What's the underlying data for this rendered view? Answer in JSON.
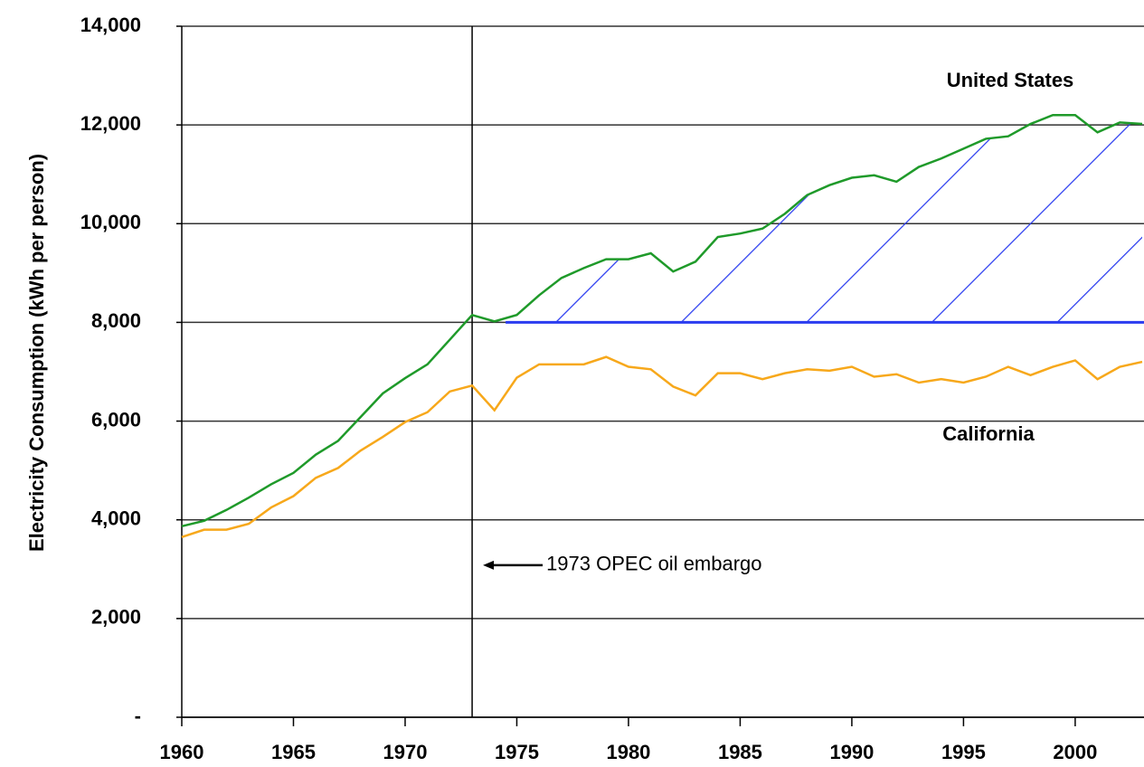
{
  "chart_data": {
    "type": "line",
    "y_label": "Electricity Consumption (kWh per person)",
    "x": [
      1960,
      1961,
      1962,
      1963,
      1964,
      1965,
      1966,
      1967,
      1968,
      1969,
      1970,
      1971,
      1972,
      1973,
      1974,
      1975,
      1976,
      1977,
      1978,
      1979,
      1980,
      1981,
      1982,
      1983,
      1984,
      1985,
      1986,
      1987,
      1988,
      1989,
      1990,
      1991,
      1992,
      1993,
      1994,
      1995,
      1996,
      1997,
      1998,
      1999,
      2000,
      2001,
      2002,
      2003
    ],
    "series": [
      {
        "name": "United States",
        "color": "#1f9a2a",
        "values": [
          3870,
          3980,
          4200,
          4450,
          4720,
          4950,
          5320,
          5600,
          6080,
          6560,
          6870,
          7150,
          7650,
          8150,
          8020,
          8150,
          8550,
          8900,
          9100,
          9280,
          9280,
          9400,
          9030,
          9230,
          9730,
          9800,
          9900,
          10200,
          10580,
          10780,
          10930,
          10980,
          10850,
          11150,
          11320,
          11520,
          11720,
          11770,
          12020,
          12200,
          12200,
          11850,
          12050,
          12020
        ]
      },
      {
        "name": "California",
        "color": "#f7a81b",
        "values": [
          3650,
          3800,
          3800,
          3920,
          4250,
          4480,
          4850,
          5050,
          5400,
          5680,
          5980,
          6180,
          6600,
          6720,
          6220,
          6880,
          7150,
          7150,
          7150,
          7300,
          7100,
          7050,
          6700,
          6520,
          6970,
          6970,
          6850,
          6970,
          7050,
          7020,
          7100,
          6900,
          6950,
          6780,
          6850,
          6780,
          6900,
          7100,
          6930,
          7100,
          7230,
          6850,
          7100,
          7200
        ]
      }
    ],
    "hatch": {
      "baseline": 8000,
      "from": 1974.5,
      "color": "#2a3cf0"
    },
    "annotation": {
      "text": "1973 OPEC oil embargo",
      "x": 1973,
      "y": 3080
    },
    "xlim": [
      1960,
      2003
    ],
    "xticks": [
      1960,
      1965,
      1970,
      1975,
      1980,
      1985,
      1990,
      1995,
      2000
    ],
    "ylim": [
      0,
      14000
    ],
    "yticks": [
      {
        "value": 0,
        "label": "-"
      },
      {
        "value": 2000,
        "label": "2,000"
      },
      {
        "value": 4000,
        "label": "4,000"
      },
      {
        "value": 6000,
        "label": "6,000"
      },
      {
        "value": 8000,
        "label": "8,000"
      },
      {
        "value": 10000,
        "label": "10,000"
      },
      {
        "value": 12000,
        "label": "12,000"
      },
      {
        "value": 14000,
        "label": "14,000"
      }
    ],
    "grid": true
  }
}
